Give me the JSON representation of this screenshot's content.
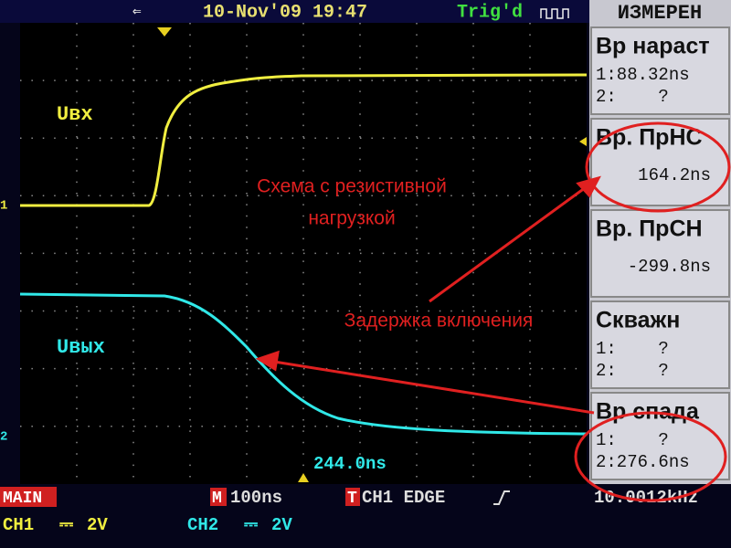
{
  "header": {
    "datetime": "10-Nov'09 19:47",
    "trigger": "Trig'd"
  },
  "screen": {
    "input_label": "Uвх",
    "output_label": "Uвых",
    "annotations": [
      "Схема с резистивной",
      "нагрузкой",
      "Задержка включения"
    ],
    "cursor_readout": "244.0ns",
    "channel_markers": [
      "1",
      "2"
    ]
  },
  "measurements": {
    "title": "ИЗМЕРЕН",
    "items": [
      {
        "name": "Вр нараст",
        "lines": [
          "1:88.32ns",
          "2:    ?"
        ]
      },
      {
        "name": "Вр. ПрНС",
        "lines": [
          "164.2ns"
        ]
      },
      {
        "name": "Вр. ПрСН",
        "lines": [
          "-299.8ns"
        ]
      },
      {
        "name": "Скважн",
        "lines": [
          "1:    ?",
          "2:    ?"
        ]
      },
      {
        "name": "Вр спада",
        "lines": [
          "1:    ?",
          "2:276.6ns"
        ]
      }
    ]
  },
  "footer": {
    "mode": "MAIN",
    "timebase_marker": "M",
    "timebase": "100ns",
    "trigger_marker": "T",
    "trigger_setup": "CH1 EDGE",
    "frequency": "10.0012kHz",
    "ch1": "CH1",
    "ch1_scale": "2V",
    "ch2": "CH2",
    "ch2_scale": "2V"
  }
}
